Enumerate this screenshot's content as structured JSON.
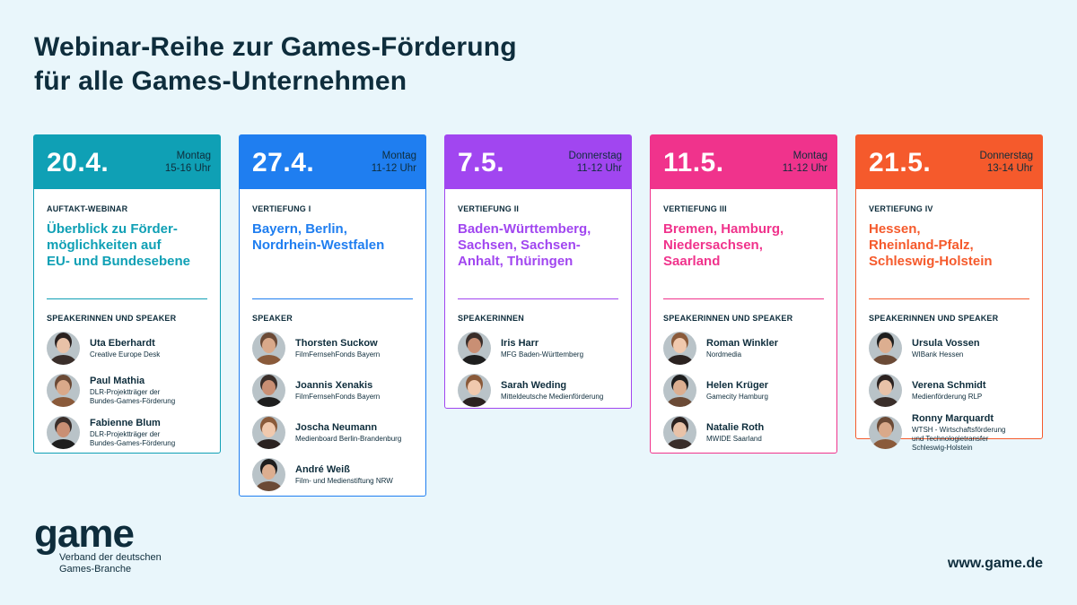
{
  "title": "Webinar-Reihe zur Games-Förderung\nfür alle Games-Unternehmen",
  "cards": [
    {
      "date": "20.4.",
      "weekday": "Montag",
      "time": "15-16 Uhr",
      "kind": "AUFTAKT-WEBINAR",
      "topic": "Überblick zu Förder-\nmöglichkeiten auf\nEU- und Bundesebene",
      "speakers_label": "SPEAKERINNEN UND SPEAKER",
      "color": "#0fa0b5",
      "speakers": [
        {
          "name": "Uta Eberhardt",
          "org": "Creative Europe Desk"
        },
        {
          "name": "Paul Mathia",
          "org": "DLR-Projektträger der\nBundes-Games-Förderung"
        },
        {
          "name": "Fabienne Blum",
          "org": "DLR-Projektträger der\nBundes-Games-Förderung"
        }
      ]
    },
    {
      "date": "27.4.",
      "weekday": "Montag",
      "time": "11-12 Uhr",
      "kind": "VERTIEFUNG I",
      "topic": "Bayern, Berlin,\nNordrhein-Westfalen",
      "speakers_label": "SPEAKER",
      "color": "#1f7ef0",
      "speakers": [
        {
          "name": "Thorsten Suckow",
          "org": "FilmFernsehFonds Bayern"
        },
        {
          "name": "Joannis Xenakis",
          "org": "FilmFernsehFonds Bayern"
        },
        {
          "name": "Joscha Neumann",
          "org": "Medienboard Berlin-Brandenburg"
        },
        {
          "name": "André Weiß",
          "org": "Film- und Medienstiftung NRW"
        }
      ]
    },
    {
      "date": "7.5.",
      "weekday": "Donnerstag",
      "time": "11-12 Uhr",
      "kind": "VERTIEFUNG II",
      "topic": "Baden-Württemberg,\nSachsen, Sachsen-\nAnhalt, Thüringen",
      "speakers_label": "SPEAKERINNEN",
      "color": "#a146f0",
      "speakers": [
        {
          "name": "Iris Harr",
          "org": "MFG Baden-Württemberg"
        },
        {
          "name": "Sarah Weding",
          "org": "Mitteldeutsche Medienförderung"
        }
      ]
    },
    {
      "date": "11.5.",
      "weekday": "Montag",
      "time": "11-12 Uhr",
      "kind": "VERTIEFUNG III",
      "topic": "Bremen, Hamburg,\nNiedersachsen,\nSaarland",
      "speakers_label": "SPEAKERINNEN UND SPEAKER",
      "color": "#f0338c",
      "speakers": [
        {
          "name": "Roman Winkler",
          "org": "Nordmedia"
        },
        {
          "name": "Helen Krüger",
          "org": "Gamecity Hamburg"
        },
        {
          "name": "Natalie Roth",
          "org": "MWIDE Saarland"
        }
      ]
    },
    {
      "date": "21.5.",
      "weekday": "Donnerstag",
      "time": "13-14 Uhr",
      "kind": "VERTIEFUNG IV",
      "topic": "Hessen,\nRheinland-Pfalz,\nSchleswig-Holstein",
      "speakers_label": "SPEAKERINNEN UND SPEAKER",
      "color": "#f55a2c",
      "speakers": [
        {
          "name": "Ursula Vossen",
          "org": "WIBank Hessen"
        },
        {
          "name": "Verena Schmidt",
          "org": "Medienförderung RLP"
        },
        {
          "name": "Ronny Marquardt",
          "org": "WTSH - Wirtschaftsförderung\nund Technologietransfer\nSchleswig-Holstein"
        }
      ]
    }
  ],
  "logo": {
    "word": "game",
    "subtitle": "Verband der deutschen\nGames-Branche"
  },
  "url": "www.game.de"
}
